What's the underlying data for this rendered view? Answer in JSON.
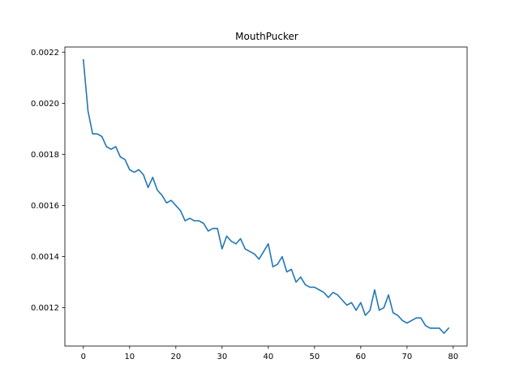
{
  "chart_data": {
    "type": "line",
    "title": "MouthPucker",
    "xlabel": "",
    "ylabel": "",
    "xlim": [
      -4,
      83
    ],
    "ylim": [
      0.00105,
      0.00222
    ],
    "grid": false,
    "x_ticks": [
      0,
      10,
      20,
      30,
      40,
      50,
      60,
      70,
      80
    ],
    "y_ticks": [
      0.0012,
      0.0014,
      0.0016,
      0.0018,
      0.002,
      0.0022
    ],
    "x_tick_labels": [
      "0",
      "10",
      "20",
      "30",
      "40",
      "50",
      "60",
      "70",
      "80"
    ],
    "y_tick_labels": [
      "0.0012",
      "0.0014",
      "0.0016",
      "0.0018",
      "0.0020",
      "0.0022"
    ],
    "line_color": "#1f77b4",
    "series": [
      {
        "values": [
          0.00217,
          0.00197,
          0.00188,
          0.00188,
          0.00187,
          0.00183,
          0.00182,
          0.00183,
          0.00179,
          0.00178,
          0.00174,
          0.00173,
          0.00174,
          0.00172,
          0.00167,
          0.00171,
          0.00166,
          0.00164,
          0.00161,
          0.00162,
          0.0016,
          0.00158,
          0.00154,
          0.00155,
          0.00154,
          0.00154,
          0.00153,
          0.0015,
          0.00151,
          0.00151,
          0.00143,
          0.00148,
          0.00146,
          0.00145,
          0.00147,
          0.00143,
          0.00142,
          0.00141,
          0.00139,
          0.00142,
          0.00145,
          0.00136,
          0.00137,
          0.0014,
          0.00134,
          0.00135,
          0.0013,
          0.00132,
          0.00129,
          0.00128,
          0.00128,
          0.00127,
          0.00126,
          0.00124,
          0.00126,
          0.00125,
          0.00123,
          0.00121,
          0.00122,
          0.00119,
          0.00122,
          0.00117,
          0.00119,
          0.00127,
          0.00119,
          0.0012,
          0.00125,
          0.00118,
          0.00117,
          0.00115,
          0.00114,
          0.00115,
          0.00116,
          0.00116,
          0.00113,
          0.00112,
          0.00112,
          0.00112,
          0.0011,
          0.00112
        ]
      }
    ]
  }
}
